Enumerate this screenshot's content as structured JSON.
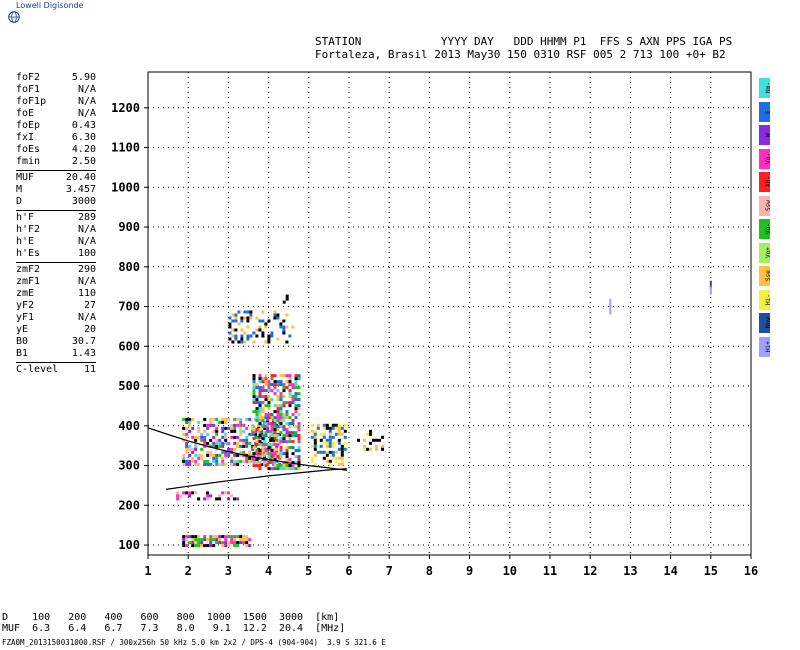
{
  "brand": {
    "logo_text": "Lowell Digisonde"
  },
  "header": {
    "line1": "STATION            YYYY DAY   DDD HHMM P1  FFS S AXN PPS IGA PS",
    "line2": "Fortaleza, Brasil 2013 May30 150 0310 RSF 005 2 713 100 +0+ B2"
  },
  "params": [
    [
      [
        "foF2",
        "5.90"
      ],
      [
        "foF1",
        "N/A"
      ],
      [
        "foF1p",
        "N/A"
      ],
      [
        "foE",
        "N/A"
      ],
      [
        "foEp",
        "0.43"
      ],
      [
        "fxI",
        "6.30"
      ],
      [
        "foEs",
        "4.20"
      ],
      [
        "fmin",
        "2.50"
      ]
    ],
    [
      [
        "MUF",
        "20.40"
      ],
      [
        "M",
        "3.457"
      ],
      [
        "D",
        "3000"
      ]
    ],
    [
      [
        "h'F",
        "289"
      ],
      [
        "h'F2",
        "N/A"
      ],
      [
        "h'E",
        "N/A"
      ],
      [
        "h'Es",
        "100"
      ]
    ],
    [
      [
        "zmF2",
        "290"
      ],
      [
        "zmF1",
        "N/A"
      ],
      [
        "zmE",
        "110"
      ],
      [
        "yF2",
        "27"
      ],
      [
        "yF1",
        "N/A"
      ],
      [
        "yE",
        "20"
      ],
      [
        "B0",
        "30.7"
      ],
      [
        "B1",
        "1.43"
      ]
    ],
    [
      [
        "C-level",
        "11"
      ]
    ]
  ],
  "legend": [
    {
      "label": "Nm-",
      "color": "#40e0e0"
    },
    {
      "label": "E",
      "color": "#1e6fe0"
    },
    {
      "label": "W",
      "color": "#8a2be2"
    },
    {
      "label": "Vo-",
      "color": "#ff2ec0"
    },
    {
      "label": "X0-",
      "color": "#ff2020"
    },
    {
      "label": "Ssw",
      "color": "#ffb0b0"
    },
    {
      "label": "Vo-",
      "color": "#20c020"
    },
    {
      "label": "Vo+",
      "color": "#a0f060"
    },
    {
      "label": "Sse",
      "color": "#ffc040"
    },
    {
      "label": "Hi-",
      "color": "#f0f040"
    },
    {
      "label": "Nnw",
      "color": "#2050a0"
    },
    {
      "label": "Hi+",
      "color": "#a0a0ff"
    }
  ],
  "bottom": {
    "row1": "D    100   200   400   600   800  1000  1500  3000  [km]",
    "row2": "MUF  6.3   6.4   6.7   7.3   8.0   9.1  12.2  20.4  [MHz]"
  },
  "footer": "FZA0M_2013150031000.RSF / 300x256h 50 kHz 5.0 km 2x2 / DPS-4 (904-904)  3.9 S 321.6 E",
  "chart_data": {
    "type": "scatter",
    "xlabel": "",
    "ylabel": "",
    "xlim": [
      1,
      16
    ],
    "ylim": [
      75,
      1290
    ],
    "xticks": [
      1,
      2,
      3,
      4,
      5,
      6,
      7,
      8,
      9,
      10,
      11,
      12,
      13,
      14,
      15,
      16
    ],
    "yticks": [
      100,
      200,
      300,
      400,
      500,
      600,
      700,
      800,
      900,
      1000,
      1100,
      1200
    ],
    "grid": true,
    "trace_curves": [
      {
        "x": [
          1.0,
          1.5,
          2.0,
          2.5,
          3.0,
          3.5,
          4.0,
          4.5,
          5.0,
          5.5,
          5.95
        ],
        "y": [
          395,
          378,
          362,
          348,
          335,
          324,
          315,
          307,
          300,
          294,
          288
        ]
      },
      {
        "x": [
          1.45,
          2.0,
          2.5,
          3.0,
          3.5,
          4.0,
          4.5,
          5.0,
          5.5,
          5.95
        ],
        "y": [
          240,
          248,
          255,
          262,
          268,
          274,
          279,
          284,
          289,
          292
        ]
      }
    ],
    "echo_regions": [
      {
        "x": [
          1.85,
          3.5
        ],
        "y": [
          100,
          125
        ],
        "density": 0.8,
        "palette": [
          "#ff2ec0",
          "#20c020",
          "#000000",
          "#ffc040",
          "#8a2be2"
        ]
      },
      {
        "x": [
          1.7,
          3.2
        ],
        "y": [
          215,
          235
        ],
        "density": 0.4,
        "palette": [
          "#ff2ec0",
          "#8a2be2",
          "#000000",
          "#ffb0b0"
        ]
      },
      {
        "x": [
          1.85,
          4.3
        ],
        "y": [
          300,
          420
        ],
        "density": 0.55,
        "palette": [
          "#40e0e0",
          "#1e6fe0",
          "#ff2ec0",
          "#000000",
          "#ffc040",
          "#20c020",
          "#8a2be2",
          "#ffb0b0"
        ]
      },
      {
        "x": [
          3.6,
          4.75
        ],
        "y": [
          295,
          530
        ],
        "density": 0.6,
        "palette": [
          "#000000",
          "#ffc040",
          "#ff2ec0",
          "#1e6fe0",
          "#20c020",
          "#ff2020",
          "#40e0e0"
        ]
      },
      {
        "x": [
          5.05,
          5.9
        ],
        "y": [
          300,
          405
        ],
        "density": 0.55,
        "palette": [
          "#000000",
          "#ffc040",
          "#f0f040",
          "#1e6fe0"
        ]
      },
      {
        "x": [
          6.2,
          6.8
        ],
        "y": [
          340,
          390
        ],
        "density": 0.25,
        "palette": [
          "#ffc040",
          "#f0f040",
          "#000000"
        ]
      },
      {
        "x": [
          3.0,
          4.6
        ],
        "y": [
          610,
          690
        ],
        "density": 0.3,
        "palette": [
          "#000000",
          "#ffc040",
          "#1e6fe0"
        ]
      },
      {
        "x": [
          4.35,
          4.5
        ],
        "y": [
          710,
          730
        ],
        "density": 0.5,
        "palette": [
          "#000000"
        ]
      }
    ],
    "isolated_marks": [
      {
        "x": 12.5,
        "y": 710,
        "color": "#a0a0ff"
      },
      {
        "x": 12.5,
        "y": 690,
        "color": "#a0a0ff"
      },
      {
        "x": 15.0,
        "y": 755,
        "color": "#2050a0"
      },
      {
        "x": 15.0,
        "y": 740,
        "color": "#a0a0ff"
      }
    ]
  }
}
